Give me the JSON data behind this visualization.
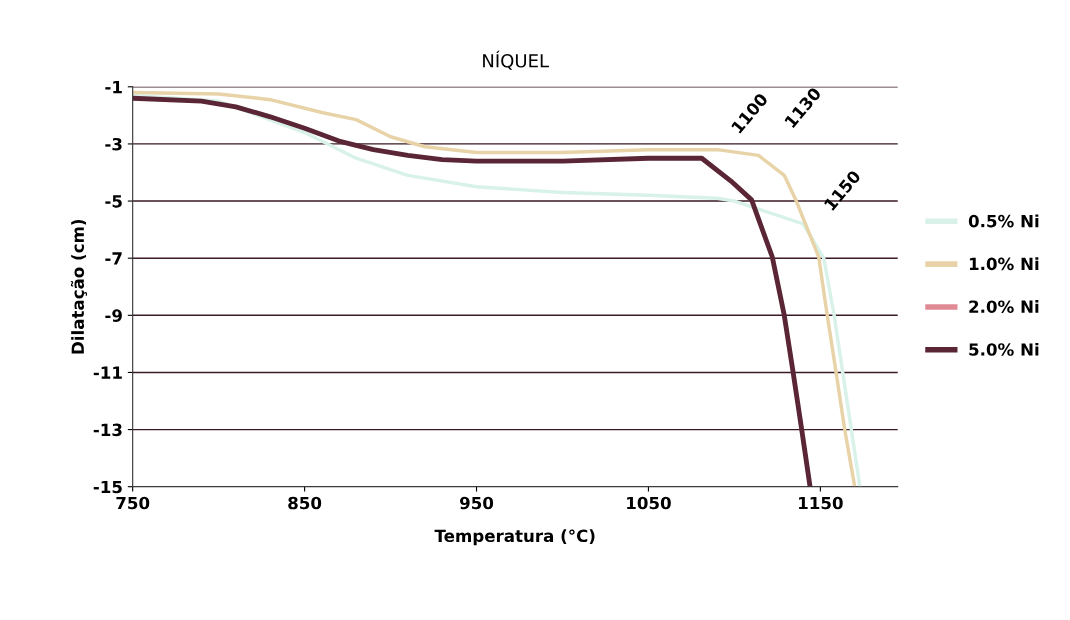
{
  "chart_data": {
    "type": "line",
    "title": "NÍQUEL",
    "xlabel": "Temperatura (°C)",
    "ylabel": "Dilatação (cm)",
    "xlim": [
      750,
      1195
    ],
    "xticks": [
      750,
      850,
      950,
      1050,
      1150
    ],
    "ylim": [
      -15,
      -1
    ],
    "yticks": [
      -15,
      -13,
      -11,
      -9,
      -7,
      -5,
      -3,
      -1
    ],
    "grid": "y",
    "legend": "right",
    "marker": "none",
    "line_style": "solid",
    "series": [
      {
        "name": "0.5% Ni",
        "color": "#d8f2ea",
        "x": [
          750,
          800,
          850,
          880,
          910,
          950,
          1000,
          1050,
          1090,
          1100,
          1140,
          1152,
          1158,
          1163,
          1168,
          1173
        ],
        "values": [
          -1.3,
          -1.5,
          -2.6,
          -3.5,
          -4.1,
          -4.5,
          -4.7,
          -4.8,
          -4.9,
          -5.0,
          -5.8,
          -7,
          -9,
          -11,
          -13,
          -15
        ]
      },
      {
        "name": "1.0% Ni",
        "color": "#e8d3a8",
        "x": [
          750,
          800,
          830,
          860,
          880,
          900,
          920,
          950,
          1000,
          1050,
          1090,
          1114,
          1129,
          1136,
          1149,
          1154,
          1159,
          1164,
          1170
        ],
        "values": [
          -1.2,
          -1.25,
          -1.45,
          -1.9,
          -2.15,
          -2.75,
          -3.1,
          -3.3,
          -3.3,
          -3.2,
          -3.2,
          -3.4,
          -4.1,
          -5,
          -6.95,
          -9,
          -10.94,
          -12.94,
          -15
        ]
      },
      {
        "name": "2.0% Ni",
        "color": "#e08a96"
      },
      {
        "name": "5.0% Ni",
        "color": "#5a2636",
        "x": [
          750,
          790,
          810,
          830,
          850,
          870,
          890,
          910,
          930,
          950,
          1000,
          1050,
          1081,
          1098,
          1110,
          1122,
          1129,
          1134,
          1139,
          1144
        ],
        "values": [
          -1.4,
          -1.5,
          -1.7,
          -2.05,
          -2.45,
          -2.9,
          -3.2,
          -3.4,
          -3.55,
          -3.6,
          -3.6,
          -3.5,
          -3.5,
          -4.3,
          -4.96,
          -6.95,
          -9,
          -10.94,
          -12.94,
          -15
        ]
      }
    ],
    "annotations": [
      {
        "text": "1100",
        "x": 1098,
        "y": -4.3
      },
      {
        "text": "1130",
        "x": 1129,
        "y": -4.1
      },
      {
        "text": "1150",
        "x": 1152,
        "y": -7
      }
    ]
  }
}
